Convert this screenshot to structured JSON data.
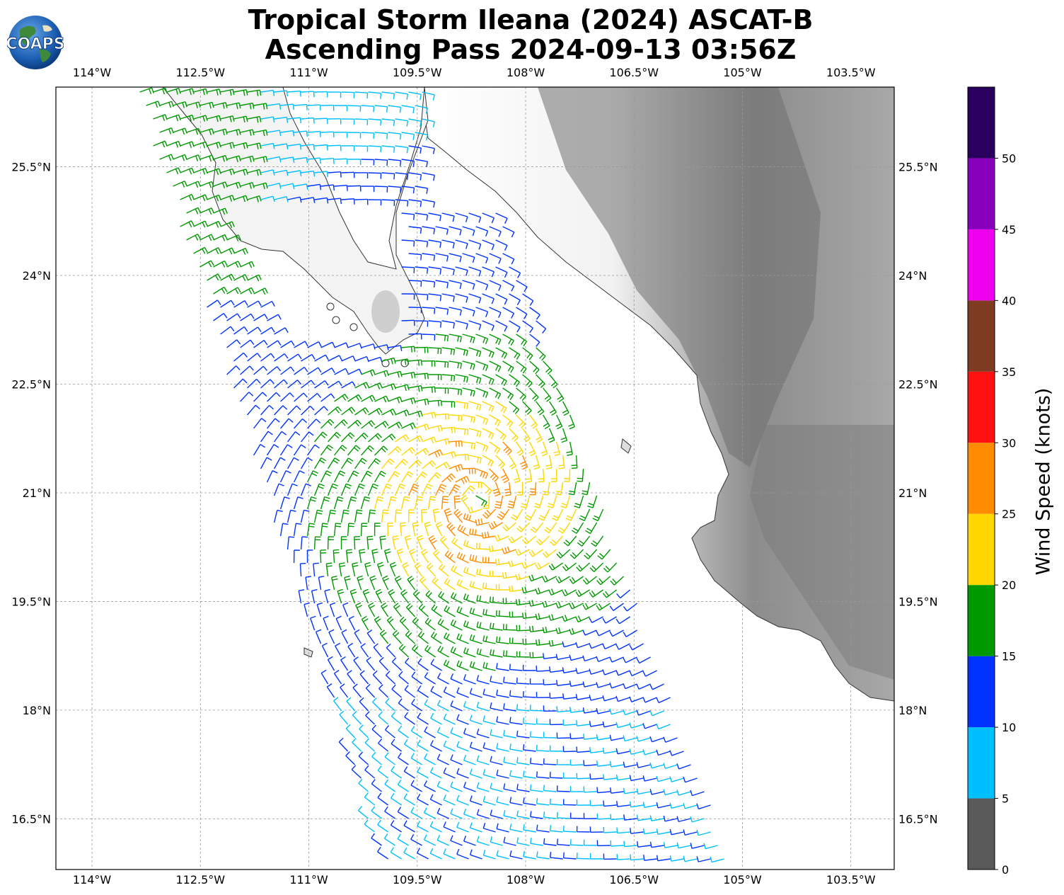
{
  "header": {
    "title_line1": "Tropical Storm Ileana (2024) ASCAT-B",
    "title_line2": "Ascending Pass 2024-09-13 03:56Z",
    "logo_text": "COAPS"
  },
  "map": {
    "lon_ticks": [
      "114°W",
      "112.5°W",
      "111°W",
      "109.5°W",
      "108°W",
      "106.5°W",
      "105°W",
      "103.5°W"
    ],
    "lat_ticks": [
      "25.5°N",
      "24°N",
      "22.5°N",
      "21°N",
      "19.5°N",
      "18°N",
      "16.5°N"
    ],
    "lon_range": [
      -114.5,
      -102.9
    ],
    "lat_range": [
      15.8,
      26.6
    ],
    "storm_center": {
      "lon": -108.7,
      "lat": 20.9
    },
    "swath_note": "ASCAT-B wind barbs over ocean"
  },
  "colorbar": {
    "label": "Wind Speed (knots)",
    "ticks": [
      "0",
      "5",
      "10",
      "15",
      "20",
      "25",
      "30",
      "35",
      "40",
      "45",
      "50"
    ],
    "bins": [
      {
        "min": 0,
        "max": 5,
        "color": "#595959"
      },
      {
        "min": 5,
        "max": 10,
        "color": "#00bfff"
      },
      {
        "min": 10,
        "max": 15,
        "color": "#0033ff"
      },
      {
        "min": 15,
        "max": 20,
        "color": "#009900"
      },
      {
        "min": 20,
        "max": 25,
        "color": "#ffd700"
      },
      {
        "min": 25,
        "max": 30,
        "color": "#ff8c00"
      },
      {
        "min": 30,
        "max": 35,
        "color": "#ff1111"
      },
      {
        "min": 35,
        "max": 40,
        "color": "#7f3a22"
      },
      {
        "min": 40,
        "max": 45,
        "color": "#ee00ee"
      },
      {
        "min": 45,
        "max": 50,
        "color": "#8800bb"
      },
      {
        "min": 50,
        "max": 55,
        "color": "#2a005f"
      }
    ]
  }
}
